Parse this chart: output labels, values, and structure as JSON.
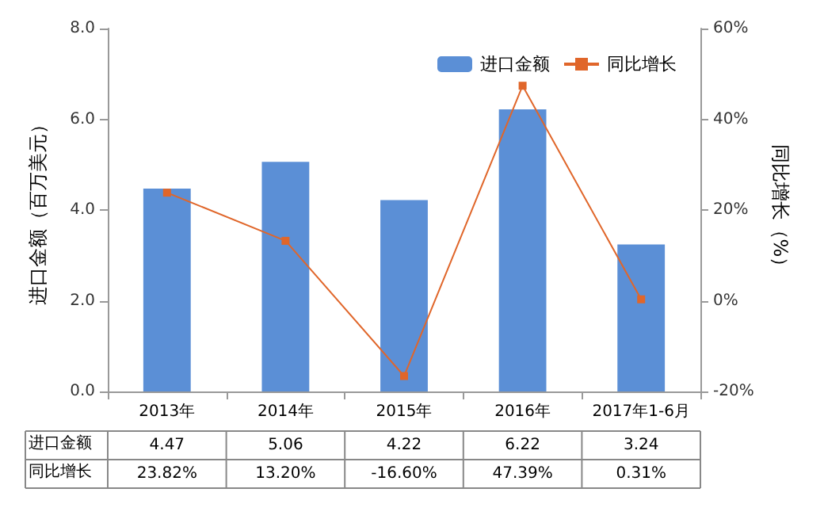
{
  "chart_data": {
    "type": "bar",
    "categories": [
      "2013年",
      "2014年",
      "2015年",
      "2016年",
      "2017年1-6月"
    ],
    "ylabel": "进口金额（百万美元）",
    "y2label": "同比增长（%）",
    "series": [
      {
        "name": "进口金额",
        "color": "#5b8fd6",
        "values": [
          4.47,
          5.06,
          4.22,
          6.22,
          3.24
        ],
        "value_labels": [
          "4.47",
          "5.06",
          "4.22",
          "6.22",
          "3.24"
        ]
      },
      {
        "name": "同比增长",
        "type": "line",
        "axis": "y2",
        "color": "#e0662a",
        "values": [
          23.82,
          13.2,
          -16.6,
          47.39,
          0.31
        ],
        "value_labels": [
          "23.82%",
          "13.20%",
          "-16.60%",
          "47.39%",
          "0.31%"
        ]
      }
    ],
    "ylim": [
      0,
      8
    ],
    "yticks": [
      {
        "value": 0,
        "label": "0.0"
      },
      {
        "value": 2,
        "label": "2.0"
      },
      {
        "value": 4,
        "label": "4.0"
      },
      {
        "value": 6,
        "label": "6.0"
      },
      {
        "value": 8,
        "label": "8.0"
      }
    ],
    "y2lim": [
      -20,
      60
    ],
    "y2ticks": [
      {
        "value": -20,
        "label": "-20%"
      },
      {
        "value": 0,
        "label": "0%"
      },
      {
        "value": 20,
        "label": "20%"
      },
      {
        "value": 40,
        "label": "40%"
      },
      {
        "value": 60,
        "label": "60%"
      }
    ],
    "legend": "top right",
    "marker": "square",
    "line_style": "solid",
    "grid": false
  }
}
